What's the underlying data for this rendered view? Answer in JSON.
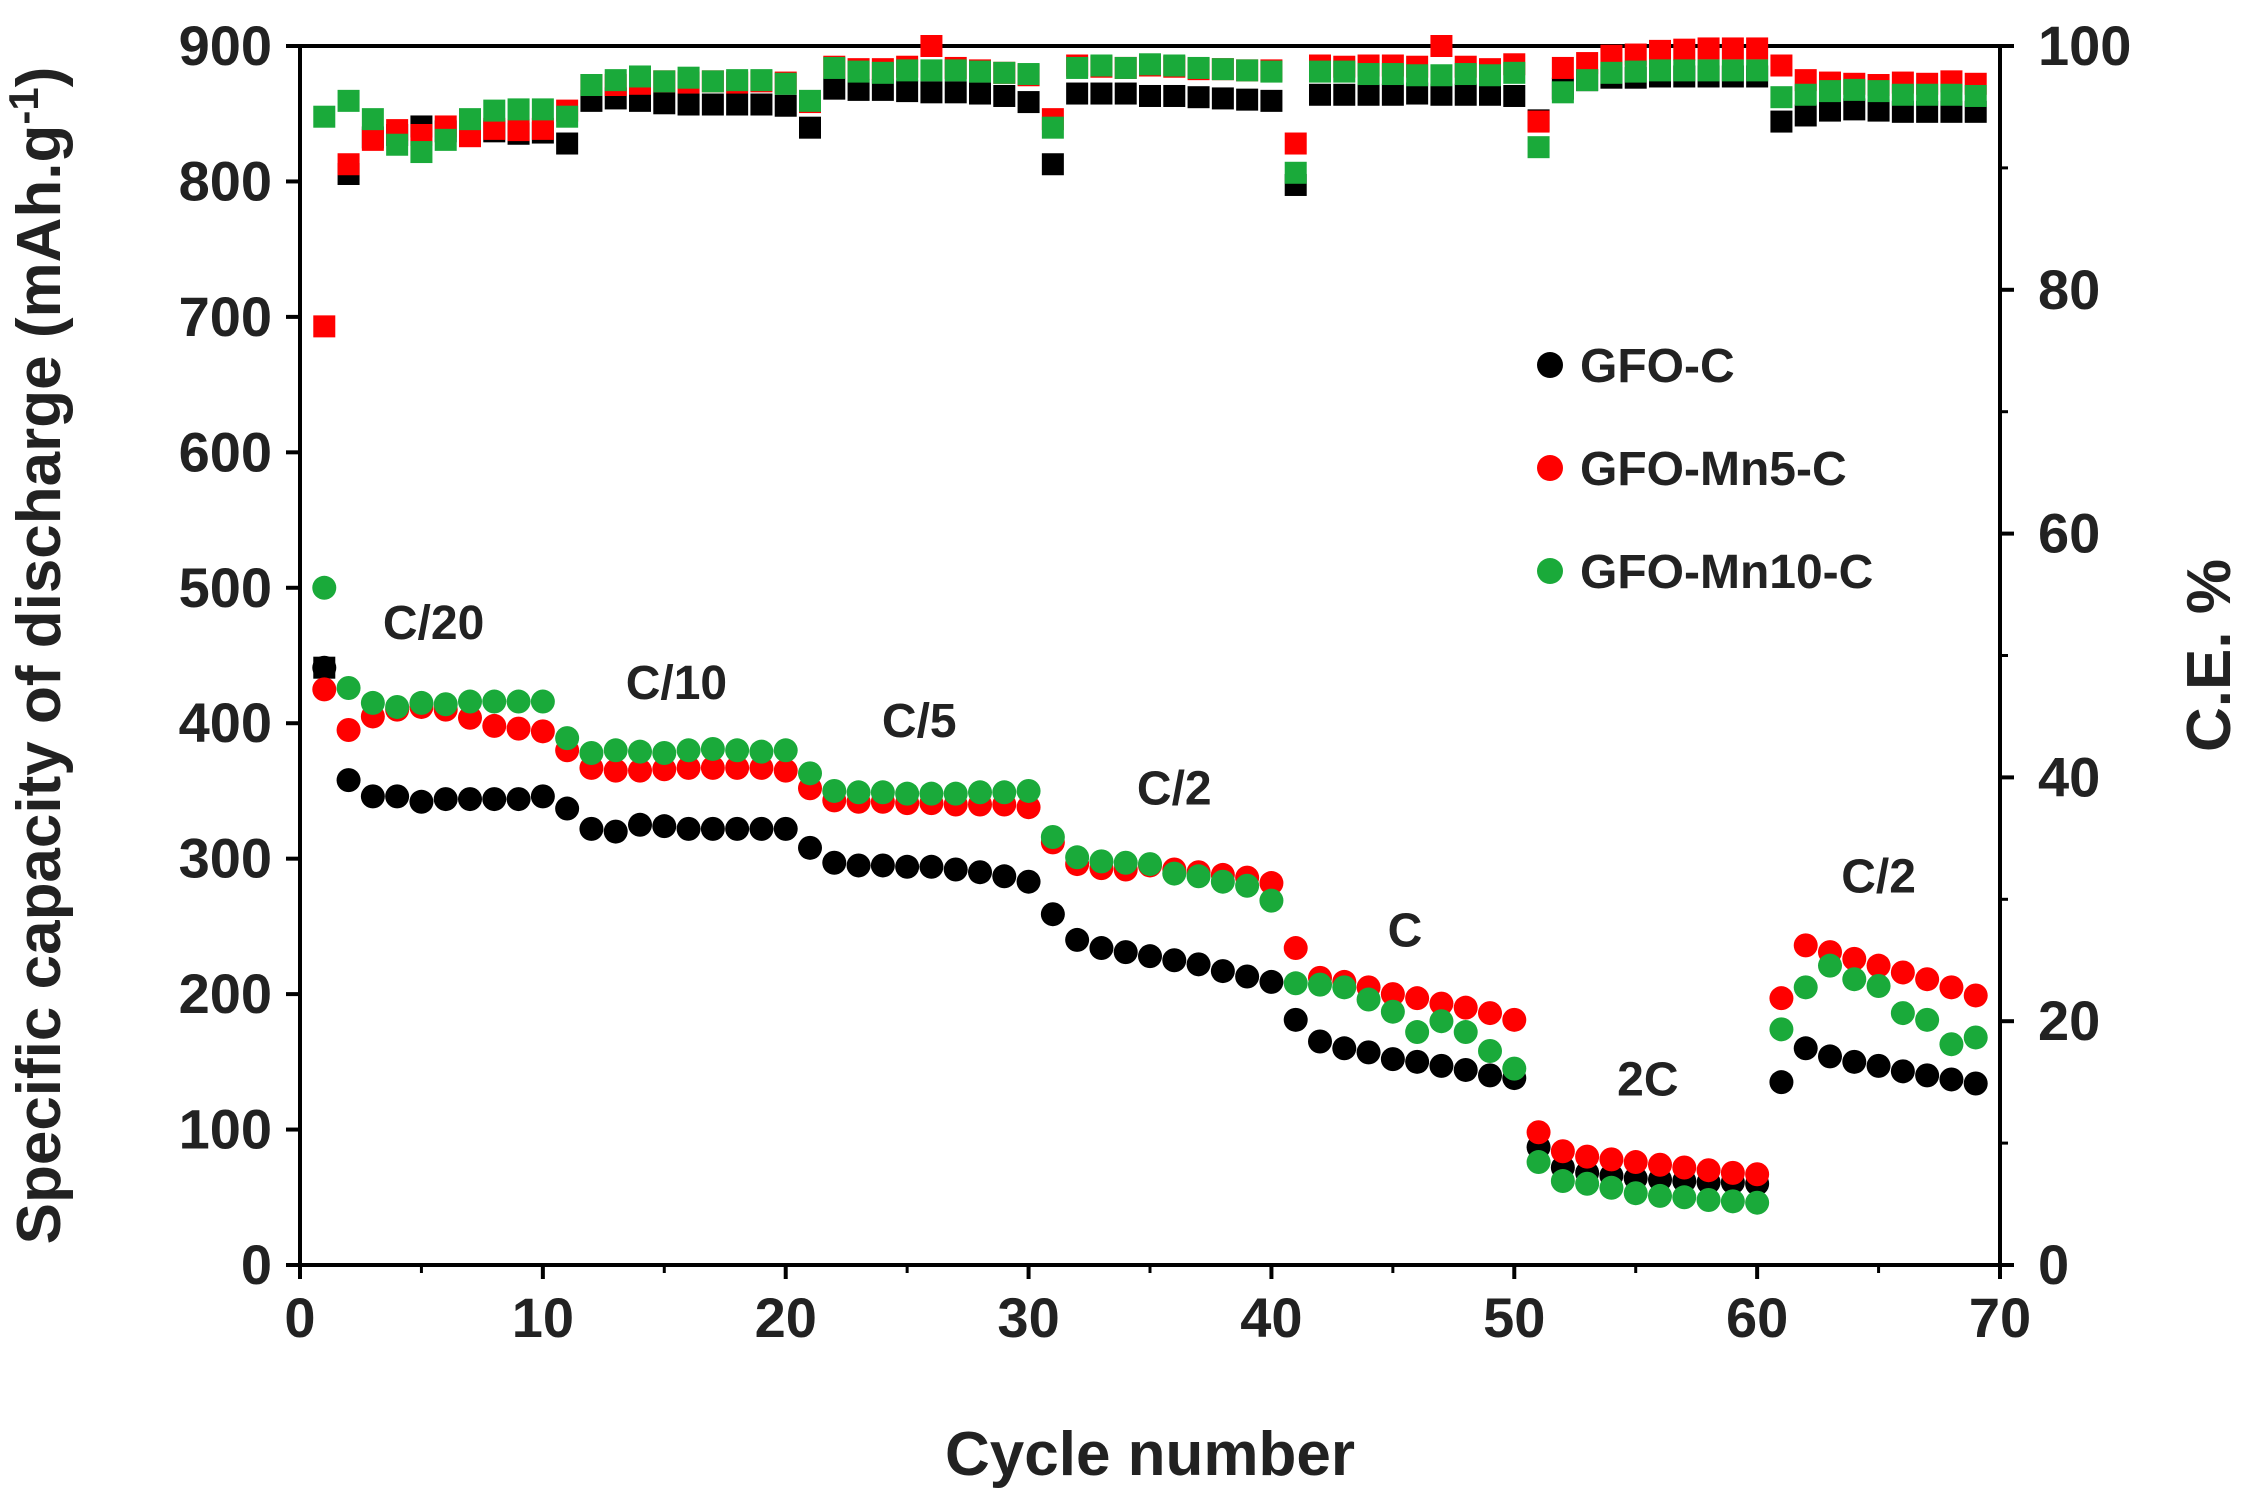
{
  "chart_data": {
    "type": "scatter",
    "xlabel": "Cycle number",
    "ylabel_left": "Specific capacity of discharge (mAh.g",
    "ylabel_left_sup": "-1",
    "ylabel_left_end": ")",
    "ylabel_right": "C.E. %",
    "xlim": [
      0,
      70
    ],
    "ylim_left": [
      0,
      900
    ],
    "ylim_right": [
      0,
      100
    ],
    "x_ticks": [
      0,
      10,
      20,
      30,
      40,
      50,
      60,
      70
    ],
    "y_left_ticks": [
      0,
      100,
      200,
      300,
      400,
      500,
      600,
      700,
      800,
      900
    ],
    "y_right_ticks": [
      0,
      20,
      40,
      60,
      80,
      100
    ],
    "rate_labels": [
      {
        "text": "C/20",
        "x": 5.5,
        "y": 462
      },
      {
        "text": "C/10",
        "x": 15.5,
        "y": 418
      },
      {
        "text": "C/5",
        "x": 25.5,
        "y": 390
      },
      {
        "text": "C/2",
        "x": 36,
        "y": 340
      },
      {
        "text": "C",
        "x": 45.5,
        "y": 235
      },
      {
        "text": "2C",
        "x": 55.5,
        "y": 125
      },
      {
        "text": "C/2",
        "x": 65,
        "y": 275
      }
    ],
    "legend": [
      {
        "name": "GFO-C",
        "color": "#000000"
      },
      {
        "name": "GFO-Mn5-C",
        "color": "#ff0000"
      },
      {
        "name": "GFO-Mn10-C",
        "color": "#1aaa3a"
      }
    ],
    "series": [
      {
        "name": "GFO-C",
        "color": "#000000",
        "marker": "circle",
        "axis": "left",
        "x": [
          1,
          2,
          3,
          4,
          5,
          6,
          7,
          8,
          9,
          10,
          11,
          12,
          13,
          14,
          15,
          16,
          17,
          18,
          19,
          20,
          21,
          22,
          23,
          24,
          25,
          26,
          27,
          28,
          29,
          30,
          31,
          32,
          33,
          34,
          35,
          36,
          37,
          38,
          39,
          40,
          41,
          42,
          43,
          44,
          45,
          46,
          47,
          48,
          49,
          50,
          51,
          52,
          53,
          54,
          55,
          56,
          57,
          58,
          59,
          60,
          61,
          62,
          63,
          64,
          65,
          66,
          67,
          68,
          69
        ],
        "values": [
          441,
          358,
          346,
          346,
          342,
          344,
          344,
          344,
          344,
          346,
          337,
          322,
          320,
          325,
          324,
          322,
          322,
          322,
          322,
          322,
          308,
          297,
          295,
          295,
          294,
          294,
          292,
          290,
          287,
          283,
          259,
          240,
          234,
          231,
          228,
          225,
          222,
          217,
          213,
          209,
          181,
          165,
          160,
          157,
          152,
          150,
          147,
          144,
          140,
          138,
          87,
          72,
          68,
          66,
          64,
          63,
          62,
          61,
          61,
          60,
          135,
          160,
          154,
          150,
          147,
          143,
          140,
          137,
          134
        ]
      },
      {
        "name": "GFO-Mn5-C",
        "color": "#ff0000",
        "marker": "circle",
        "axis": "left",
        "x": [
          1,
          2,
          3,
          4,
          5,
          6,
          7,
          8,
          9,
          10,
          11,
          12,
          13,
          14,
          15,
          16,
          17,
          18,
          19,
          20,
          21,
          22,
          23,
          24,
          25,
          26,
          27,
          28,
          29,
          30,
          31,
          32,
          33,
          34,
          35,
          36,
          37,
          38,
          39,
          40,
          41,
          42,
          43,
          44,
          45,
          46,
          47,
          48,
          49,
          50,
          51,
          52,
          53,
          54,
          55,
          56,
          57,
          58,
          59,
          60,
          61,
          62,
          63,
          64,
          65,
          66,
          67,
          68,
          69
        ],
        "values": [
          425,
          395,
          405,
          410,
          412,
          410,
          404,
          398,
          396,
          394,
          380,
          367,
          365,
          365,
          366,
          367,
          367,
          367,
          367,
          365,
          352,
          343,
          342,
          342,
          341,
          341,
          340,
          340,
          340,
          338,
          312,
          296,
          293,
          292,
          295,
          292,
          290,
          288,
          286,
          282,
          234,
          212,
          209,
          205,
          200,
          197,
          193,
          190,
          186,
          181,
          98,
          84,
          80,
          78,
          76,
          74,
          72,
          70,
          68,
          67,
          197,
          236,
          231,
          226,
          221,
          216,
          211,
          205,
          199
        ]
      },
      {
        "name": "GFO-Mn10-C",
        "color": "#1aaa3a",
        "marker": "circle",
        "axis": "left",
        "x": [
          1,
          2,
          3,
          4,
          5,
          6,
          7,
          8,
          9,
          10,
          11,
          12,
          13,
          14,
          15,
          16,
          17,
          18,
          19,
          20,
          21,
          22,
          23,
          24,
          25,
          26,
          27,
          28,
          29,
          30,
          31,
          32,
          33,
          34,
          35,
          36,
          37,
          38,
          39,
          40,
          41,
          42,
          43,
          44,
          45,
          46,
          47,
          48,
          49,
          50,
          51,
          52,
          53,
          54,
          55,
          56,
          57,
          58,
          59,
          60,
          61,
          62,
          63,
          64,
          65,
          66,
          67,
          68,
          69
        ],
        "values": [
          500,
          426,
          415,
          412,
          415,
          414,
          416,
          416,
          416,
          416,
          389,
          378,
          380,
          379,
          378,
          380,
          381,
          380,
          379,
          380,
          363,
          350,
          349,
          349,
          348,
          348,
          348,
          349,
          349,
          350,
          316,
          301,
          298,
          297,
          296,
          289,
          287,
          283,
          280,
          269,
          208,
          207,
          205,
          196,
          187,
          172,
          180,
          172,
          158,
          145,
          76,
          62,
          60,
          57,
          53,
          51,
          50,
          48,
          47,
          46,
          174,
          205,
          221,
          211,
          206,
          186,
          181,
          163,
          168
        ]
      },
      {
        "name": "GFO-C CE",
        "color": "#000000",
        "marker": "square",
        "axis": "right",
        "x": [
          1,
          2,
          3,
          4,
          5,
          6,
          7,
          8,
          9,
          10,
          11,
          12,
          13,
          14,
          15,
          16,
          17,
          18,
          19,
          20,
          21,
          22,
          23,
          24,
          25,
          26,
          27,
          28,
          29,
          30,
          31,
          32,
          33,
          34,
          35,
          36,
          37,
          38,
          39,
          40,
          41,
          42,
          43,
          44,
          45,
          46,
          47,
          48,
          49,
          50,
          51,
          52,
          53,
          54,
          55,
          56,
          57,
          58,
          59,
          60,
          61,
          62,
          63,
          64,
          65,
          66,
          67,
          68,
          69
        ],
        "values": [
          49,
          89.5,
          92.5,
          92.7,
          93.4,
          93,
          93,
          93,
          92.8,
          92.9,
          92,
          95.5,
          95.7,
          95.5,
          95.3,
          95.2,
          95.2,
          95.2,
          95.2,
          95.1,
          93.3,
          96.5,
          96.4,
          96.4,
          96.3,
          96.2,
          96.2,
          96.1,
          95.9,
          95.4,
          90.3,
          96.1,
          96.1,
          96.1,
          95.9,
          95.9,
          95.8,
          95.7,
          95.6,
          95.5,
          88.6,
          96,
          96,
          96,
          96,
          96.1,
          96,
          96,
          96,
          95.9,
          93.9,
          96.5,
          97.2,
          97.4,
          97.4,
          97.5,
          97.5,
          97.5,
          97.5,
          97.5,
          93.8,
          94.3,
          94.7,
          94.8,
          94.7,
          94.6,
          94.6,
          94.6,
          94.6
        ]
      },
      {
        "name": "GFO-Mn5-C CE",
        "color": "#ff0000",
        "marker": "square",
        "axis": "right",
        "x": [
          1,
          2,
          3,
          4,
          5,
          6,
          7,
          8,
          9,
          10,
          11,
          12,
          13,
          14,
          15,
          16,
          17,
          18,
          19,
          20,
          21,
          22,
          23,
          24,
          25,
          26,
          27,
          28,
          29,
          30,
          31,
          32,
          33,
          34,
          35,
          36,
          37,
          38,
          39,
          40,
          41,
          42,
          43,
          44,
          45,
          46,
          47,
          48,
          49,
          50,
          51,
          52,
          53,
          54,
          55,
          56,
          57,
          58,
          59,
          60,
          61,
          62,
          63,
          64,
          65,
          66,
          67,
          68,
          69
        ],
        "values": [
          77,
          90.3,
          92.3,
          93.1,
          92.7,
          93.4,
          92.6,
          93.2,
          93.1,
          93.2,
          94.7,
          96.8,
          96.8,
          96.9,
          97.1,
          97,
          97.1,
          97,
          97.1,
          97,
          95.4,
          98.3,
          98.1,
          98.1,
          98.3,
          100,
          98.2,
          98,
          97.8,
          97.6,
          94,
          98.4,
          98.3,
          98.2,
          98.4,
          98.3,
          98.1,
          98.1,
          98,
          98,
          92,
          98.4,
          98.3,
          98.4,
          98.4,
          98.3,
          100,
          98.3,
          98.1,
          98.5,
          93.8,
          98.2,
          98.6,
          99.2,
          99.3,
          99.6,
          99.7,
          99.8,
          99.8,
          99.8,
          98.4,
          97.2,
          97,
          96.9,
          96.8,
          97,
          96.9,
          97.1,
          96.9
        ]
      },
      {
        "name": "GFO-Mn10-C CE",
        "color": "#1aaa3a",
        "marker": "square",
        "axis": "right",
        "x": [
          1,
          2,
          3,
          4,
          5,
          6,
          7,
          8,
          9,
          10,
          11,
          12,
          13,
          14,
          15,
          16,
          17,
          18,
          19,
          20,
          21,
          22,
          23,
          24,
          25,
          26,
          27,
          28,
          29,
          30,
          31,
          32,
          33,
          34,
          35,
          36,
          37,
          38,
          39,
          40,
          41,
          42,
          43,
          44,
          45,
          46,
          47,
          48,
          49,
          50,
          51,
          52,
          53,
          54,
          55,
          56,
          57,
          58,
          59,
          60,
          61,
          62,
          63,
          64,
          65,
          66,
          67,
          68,
          69
        ],
        "values": [
          94.2,
          95.5,
          94,
          91.9,
          91.3,
          92.3,
          94,
          94.7,
          94.8,
          94.8,
          94.2,
          96.8,
          97.2,
          97.5,
          97.1,
          97.4,
          97.1,
          97.2,
          97.2,
          96.9,
          95.5,
          98.2,
          97.9,
          97.8,
          98,
          98,
          98,
          97.9,
          97.8,
          97.7,
          93.3,
          98.2,
          98.4,
          98.2,
          98.5,
          98.4,
          98.2,
          98.1,
          98,
          97.9,
          89.6,
          97.9,
          97.9,
          97.7,
          97.7,
          97.6,
          97.6,
          97.7,
          97.6,
          97.8,
          91.7,
          96.2,
          97.2,
          97.8,
          97.9,
          98,
          98,
          98,
          98,
          98,
          95.8,
          96,
          96.3,
          96.4,
          96.3,
          96,
          96,
          96,
          95.9
        ]
      }
    ]
  }
}
